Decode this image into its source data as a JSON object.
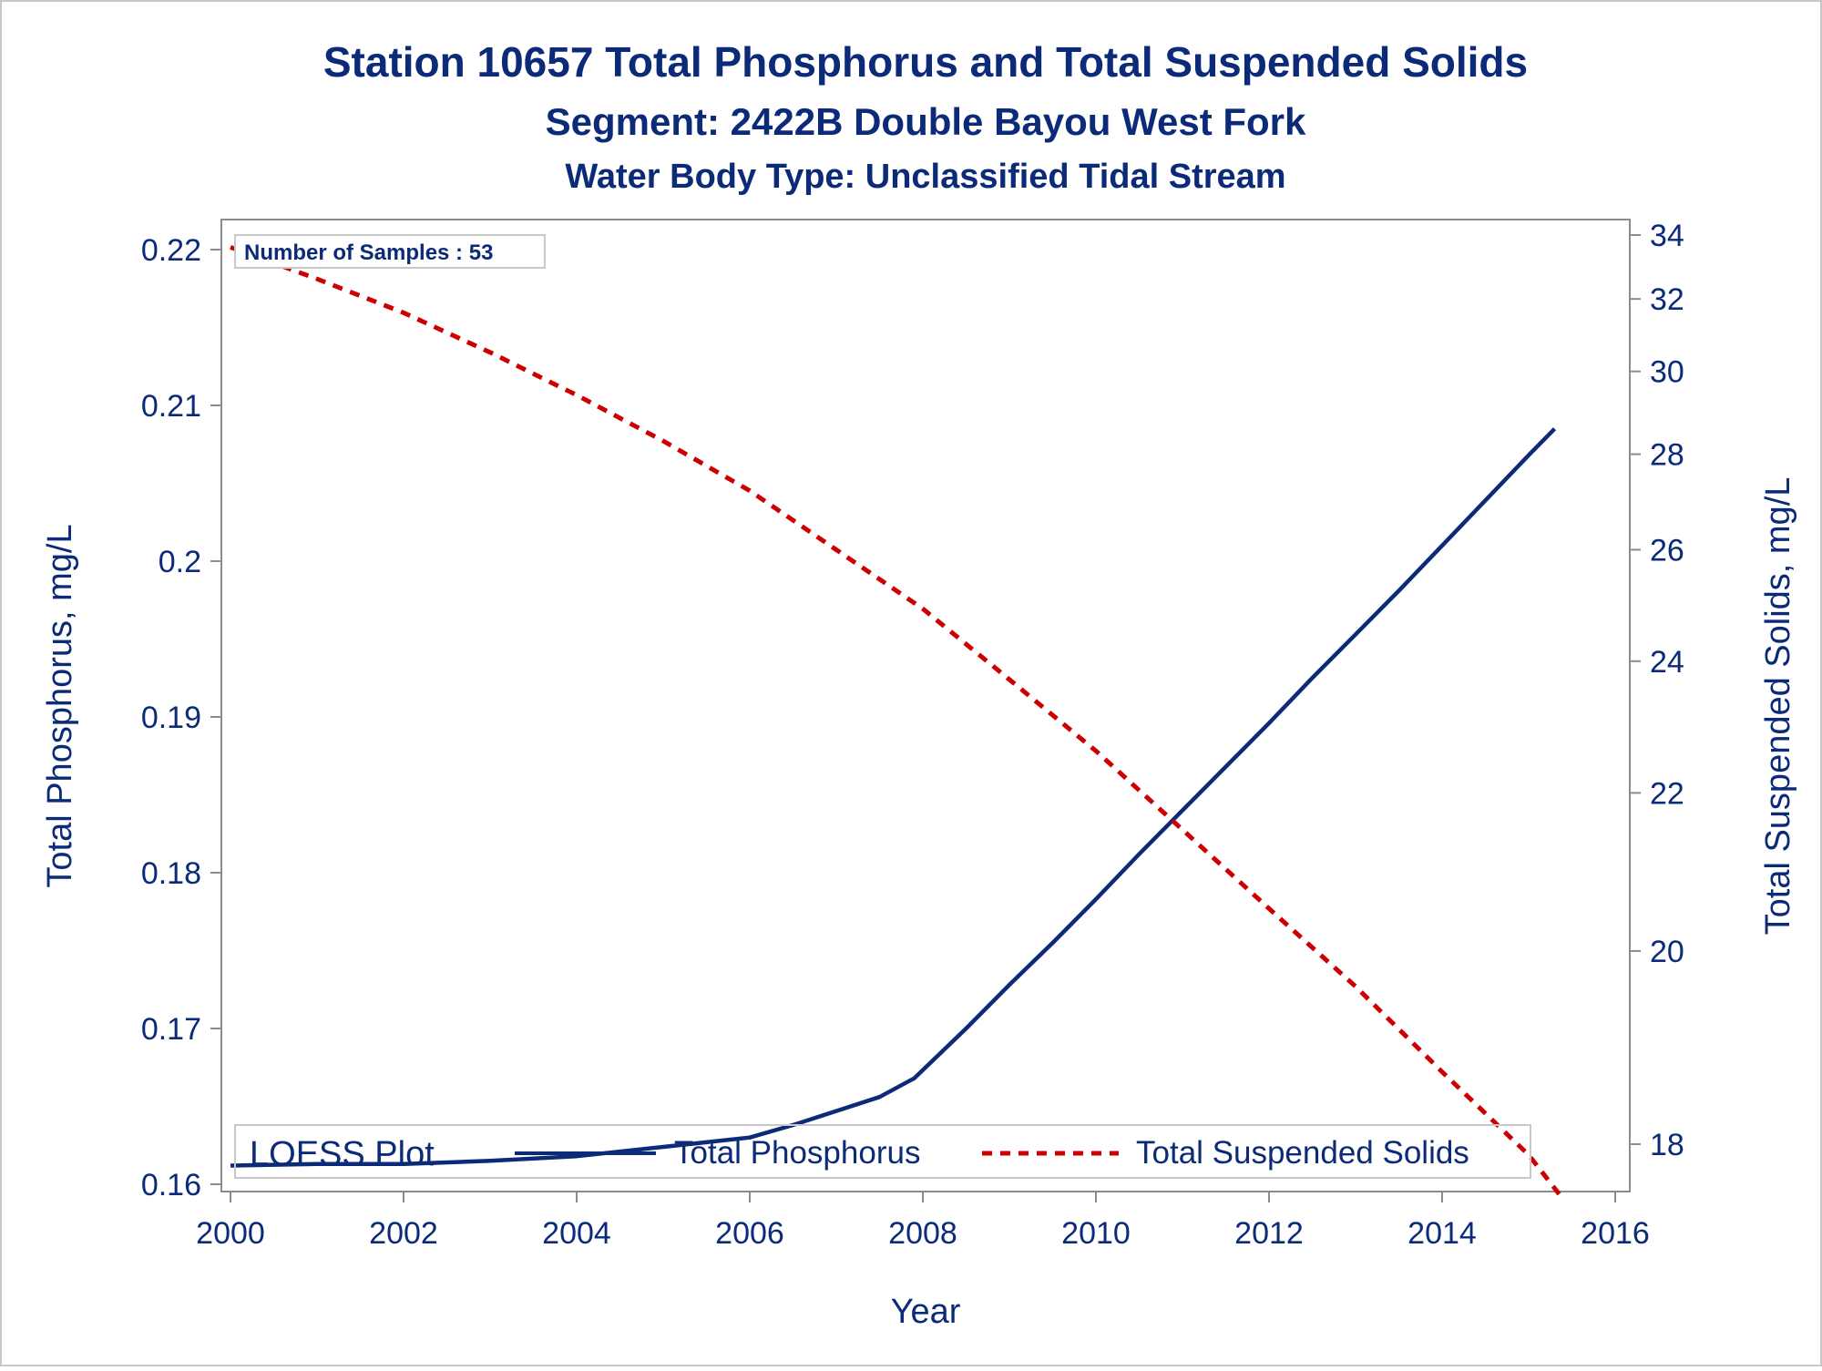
{
  "chart_data": {
    "type": "line",
    "title": "Station 10657  Total Phosphorus and Total Suspended Solids",
    "subtitle": "Segment: 2422B  Double Bayou West Fork",
    "subtitle2": "Water Body Type: Unclassified Tidal Stream",
    "xlabel": "Year",
    "ylabel": "Total Phosphorus, mg/L",
    "y2label": "Total Suspended Solids, mg/L",
    "xlim": [
      2000,
      2016
    ],
    "ylim": [
      0.16,
      0.22
    ],
    "y2lim": [
      18,
      34
    ],
    "x_ticks": [
      "2000",
      "2002",
      "2004",
      "2006",
      "2008",
      "2010",
      "2012",
      "2014",
      "2016"
    ],
    "y_ticks": [
      "0.16",
      "0.17",
      "0.18",
      "0.19",
      "0.2",
      "0.21",
      "0.22"
    ],
    "y2_ticks": [
      "18",
      "20",
      "22",
      "24",
      "26",
      "28",
      "30",
      "32",
      "34"
    ],
    "y2_scale": "reciprocal",
    "annotation": "Number of Samples : 53",
    "legend": {
      "title": "LOESS Plot",
      "placement": "bottom-inside"
    },
    "series": [
      {
        "name": "Total Phosphorus",
        "axis": "left",
        "color": "#0b2a78",
        "style": "solid",
        "x": [
          2000.0,
          2001.0,
          2002.0,
          2003.0,
          2004.0,
          2005.0,
          2006.0,
          2006.5,
          2007.0,
          2007.5,
          2007.9,
          2008.5,
          2009.0,
          2009.5,
          2010.0,
          2010.5,
          2011.0,
          2011.5,
          2012.0,
          2012.5,
          2013.0,
          2013.5,
          2014.0,
          2014.5,
          2015.0,
          2015.3
        ],
        "y": [
          0.1612,
          0.1613,
          0.1613,
          0.1615,
          0.1618,
          0.1624,
          0.163,
          0.1638,
          0.1647,
          0.1656,
          0.1668,
          0.17,
          0.1728,
          0.1755,
          0.1783,
          0.1812,
          0.184,
          0.1868,
          0.1896,
          0.1925,
          0.1953,
          0.1981,
          0.201,
          0.2039,
          0.2068,
          0.2085
        ]
      },
      {
        "name": "Total Suspended Solids",
        "axis": "right",
        "color": "#cc0000",
        "style": "dashed",
        "x": [
          2000.0,
          2001.0,
          2002.0,
          2003.0,
          2004.0,
          2005.0,
          2006.0,
          2007.0,
          2008.0,
          2009.0,
          2010.0,
          2011.0,
          2012.0,
          2013.0,
          2014.0,
          2015.0,
          2015.4
        ],
        "y": [
          33.6,
          32.6,
          31.6,
          30.5,
          29.4,
          28.3,
          27.2,
          26.0,
          24.9,
          23.7,
          22.6,
          21.5,
          20.5,
          19.6,
          18.7,
          17.9,
          17.5
        ]
      }
    ]
  }
}
